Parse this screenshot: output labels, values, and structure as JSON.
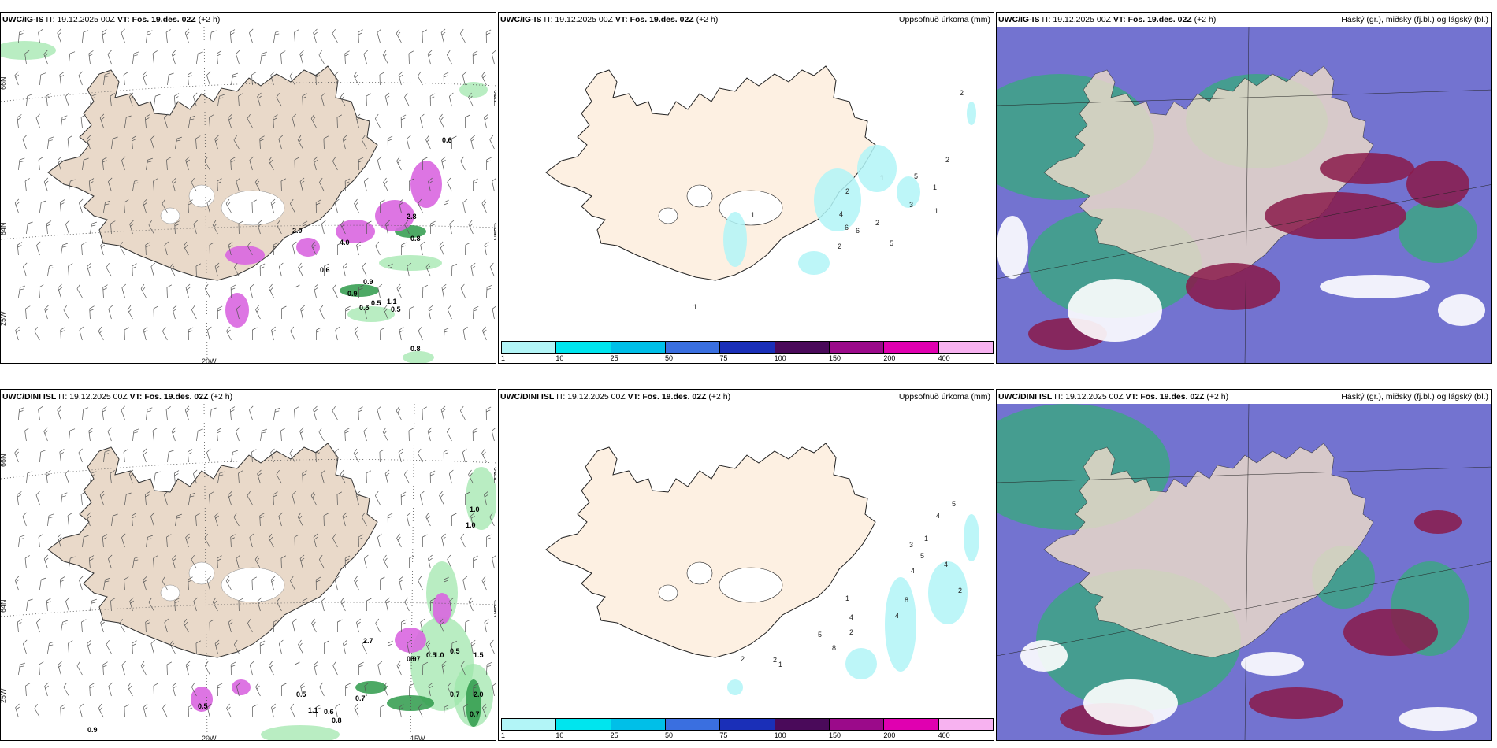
{
  "rows": [
    {
      "model": "UWC/IG-IS",
      "panels": [
        {
          "id": "wind",
          "model": "UWC/IG-IS",
          "it_label": "IT:",
          "it": "19.12.2025 00Z",
          "vt_label": "VT:",
          "vt": "Fös. 19.des. 02Z",
          "lead": "(+2 h)",
          "title": "",
          "axis": {
            "lat1": "66N",
            "lat2": "64N",
            "lon1": "25W",
            "lon2": "20W",
            "lon3": "",
            "right1": "66N",
            "right2": "64N"
          },
          "values": [
            "0.6",
            "0.5",
            "0.8",
            "0.9",
            "0.5",
            "1.1",
            "0.6",
            "0.8",
            "0.5",
            "4.0",
            "2.0",
            "0.9",
            "2.8"
          ]
        },
        {
          "id": "precip",
          "model": "UWC/IG-IS",
          "it_label": "IT:",
          "it": "19.12.2025 00Z",
          "vt_label": "VT:",
          "vt": "Fös. 19.des. 02Z",
          "lead": "(+2 h)",
          "title": "Uppsöfnuð úrkoma (mm)",
          "values": [
            "2",
            "2",
            "1",
            "5",
            "3",
            "1",
            "2",
            "4",
            "6",
            "6",
            "1",
            "2",
            "5",
            "2",
            "1",
            "1"
          ]
        },
        {
          "id": "clouds",
          "model": "UWC/IG-IS",
          "it_label": "IT:",
          "it": "19.12.2025 00Z",
          "vt_label": "VT:",
          "vt": "Fös. 19.des. 02Z",
          "lead": "(+2 h)",
          "title": "Háský (gr.), miðský (fj.bl.) og lágský (bl.)"
        }
      ]
    },
    {
      "model": "UWC/DINI ISL",
      "panels": [
        {
          "id": "wind",
          "model": "UWC/DINI ISL",
          "it_label": "IT:",
          "it": "19.12.2025 00Z",
          "vt_label": "VT:",
          "vt": "Fös. 19.des. 02Z",
          "lead": "(+2 h)",
          "title": "",
          "axis": {
            "lat1": "66N",
            "lat2": "64N",
            "lon1": "25W",
            "lon2": "20W",
            "lon3": "15W",
            "right1": "66N",
            "right2": "64N"
          },
          "values": [
            "1.0",
            "1.0",
            "0.5",
            "2.7",
            "0.9",
            "1.0",
            "0.5",
            "0.5",
            "0.7",
            "1.1",
            "0.6",
            "0.8",
            "0.9",
            "0.5",
            "0.7",
            "2.0",
            "0.7",
            "6.7",
            "1.5"
          ]
        },
        {
          "id": "precip",
          "model": "UWC/DINI ISL",
          "it_label": "IT:",
          "it": "19.12.2025 00Z",
          "vt_label": "VT:",
          "vt": "Fös. 19.des. 02Z",
          "lead": "(+2 h)",
          "title": "Uppsöfnuð úrkoma (mm)",
          "values": [
            "5",
            "4",
            "1",
            "3",
            "5",
            "4",
            "4",
            "2",
            "8",
            "4",
            "1",
            "1",
            "5",
            "8",
            "2",
            "4",
            "2",
            "2"
          ]
        },
        {
          "id": "clouds",
          "model": "UWC/DINI ISL",
          "it_label": "IT:",
          "it": "19.12.2025 00Z",
          "vt_label": "VT:",
          "vt": "Fös. 19.des. 02Z",
          "lead": "(+2 h)",
          "title": "Háský (gr.), miðský (fj.bl.) og lágský (bl.)"
        }
      ]
    }
  ],
  "colorbar": {
    "ticks": [
      "1",
      "10",
      "25",
      "50",
      "75",
      "100",
      "150",
      "200",
      "400"
    ],
    "colors": [
      "#b2f5f7",
      "#00e5ee",
      "#00bfe8",
      "#3a6fe0",
      "#1a2fb8",
      "#4a0a5a",
      "#9b0a8a",
      "#e000b0",
      "#f7b2f0"
    ]
  },
  "colors": {
    "land": "#e9d9c9",
    "land_light": "#fdf0e2",
    "precip_light": "#b2f5f7",
    "snow_pink": "#d966e0",
    "green": "#2e9a4a",
    "cloud_blue": "#5a5ac8",
    "cloud_red": "#8a1a4a",
    "cloud_green": "#3aa880"
  }
}
